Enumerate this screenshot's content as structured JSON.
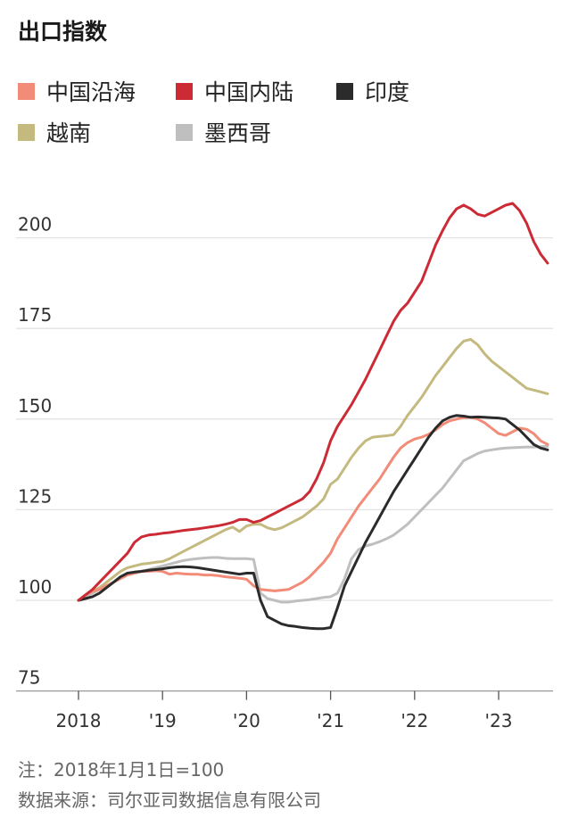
{
  "chart_data": {
    "type": "line",
    "title": "出口指数",
    "xlabel": "",
    "ylabel": "",
    "ylim": [
      75,
      210
    ],
    "yticks": [
      75,
      100,
      125,
      150,
      175,
      200
    ],
    "xlim": [
      0,
      67
    ],
    "xticks": [
      {
        "x": 0,
        "label": "2018"
      },
      {
        "x": 12,
        "label": "'19"
      },
      {
        "x": 24,
        "label": "'20"
      },
      {
        "x": 36,
        "label": "'21"
      },
      {
        "x": 48,
        "label": "'22"
      },
      {
        "x": 60,
        "label": "'23"
      }
    ],
    "grid": true,
    "legend_placement": "top",
    "series": [
      {
        "name": "中国沿海",
        "color": "#f28b77",
        "values": [
          100,
          101.5,
          102.5,
          103,
          104,
          105,
          106,
          107,
          107.5,
          108,
          108,
          108.2,
          108,
          107.2,
          107.5,
          107.3,
          107.2,
          107.2,
          107,
          107,
          106.8,
          106.5,
          106.3,
          106.1,
          105.8,
          104,
          103,
          102.8,
          102.6,
          102.8,
          103,
          104,
          105,
          106.5,
          108.5,
          110.5,
          113,
          117,
          120,
          123,
          126,
          128.5,
          131,
          133.5,
          136.5,
          139.5,
          142,
          143.5,
          144.5,
          145,
          145.8,
          147,
          148.5,
          149.5,
          150,
          150.4,
          150.5,
          150,
          149,
          147.5,
          146,
          145.5,
          146.5,
          147.5,
          147.2,
          146,
          144,
          143
        ]
      },
      {
        "name": "中国内陆",
        "color": "#cc2b36",
        "values": [
          100,
          101.5,
          103,
          105,
          107,
          109,
          111,
          113,
          116,
          117.5,
          118,
          118.2,
          118.5,
          118.7,
          119,
          119.3,
          119.5,
          119.7,
          120,
          120.3,
          120.6,
          121,
          121.5,
          122.3,
          122.3,
          121.5,
          122,
          123,
          124,
          125,
          126,
          127,
          128,
          130,
          133.5,
          138,
          144,
          148,
          151,
          154,
          157.5,
          161,
          165,
          169,
          173,
          177,
          180,
          182,
          185,
          188,
          193,
          198,
          202,
          205.5,
          208,
          209,
          208,
          206.5,
          206,
          207,
          208,
          209,
          209.5,
          207.5,
          204,
          199,
          195.5,
          193
        ]
      },
      {
        "name": "印度",
        "color": "#2b2b2b",
        "values": [
          100,
          100.5,
          101,
          102,
          103.5,
          105,
          106.5,
          107.5,
          107.8,
          108,
          108.3,
          108.5,
          108.7,
          109,
          109.2,
          109.3,
          109.2,
          109,
          108.7,
          108.4,
          108.1,
          107.8,
          107.5,
          107.2,
          107.5,
          107.5,
          100,
          95.5,
          94.5,
          93.5,
          93,
          92.8,
          92.5,
          92.3,
          92.2,
          92.2,
          92.5,
          98,
          104,
          108,
          112,
          116,
          119.5,
          123,
          126.5,
          130,
          133,
          136,
          139,
          142,
          145,
          147.5,
          149.5,
          150.5,
          151,
          150.8,
          150.5,
          150.6,
          150.5,
          150.4,
          150.3,
          150,
          148.5,
          147,
          145,
          143,
          142,
          141.5
        ]
      },
      {
        "name": "越南",
        "color": "#c4b97f",
        "values": [
          100,
          101.5,
          102.5,
          103.5,
          105,
          106.5,
          108,
          109,
          109.5,
          110,
          110.2,
          110.5,
          110.7,
          111.5,
          112.5,
          113.5,
          114.5,
          115.5,
          116.5,
          117.5,
          118.5,
          119.5,
          120.2,
          119,
          120.5,
          121,
          121,
          120,
          119.5,
          120,
          121,
          122,
          123,
          124.5,
          126,
          128,
          132,
          133.5,
          136.5,
          139.5,
          142,
          144,
          145,
          145.2,
          145.4,
          145.7,
          148,
          151,
          153.5,
          156,
          159,
          162,
          164.5,
          167,
          169.5,
          171.5,
          172,
          170.5,
          168,
          166,
          164.5,
          163,
          161.5,
          160,
          158.5,
          158,
          157.5,
          157
        ]
      },
      {
        "name": "墨西哥",
        "color": "#bfbfbf",
        "values": [
          100,
          101,
          102,
          103,
          104,
          105,
          106,
          107,
          107.5,
          108,
          108.5,
          109,
          109.5,
          110,
          110.5,
          111,
          111.3,
          111.5,
          111.7,
          111.8,
          111.8,
          111.6,
          111.5,
          111.5,
          111.5,
          111.3,
          102,
          100.5,
          100,
          99.5,
          99.5,
          99.8,
          100,
          100.2,
          100.5,
          100.8,
          101,
          102,
          106,
          111.5,
          114,
          115,
          115.5,
          116.2,
          117,
          118,
          119.5,
          121,
          123,
          125,
          127,
          129,
          131,
          133.5,
          136,
          138.5,
          139.5,
          140.5,
          141.2,
          141.5,
          141.8,
          142,
          142.1,
          142.2,
          142.3,
          142.3,
          142.4,
          142.5
        ]
      }
    ]
  },
  "notes": {
    "line1": "注：2018年1月1日=100",
    "line2": "数据来源：司尔亚司数据信息有限公司"
  }
}
